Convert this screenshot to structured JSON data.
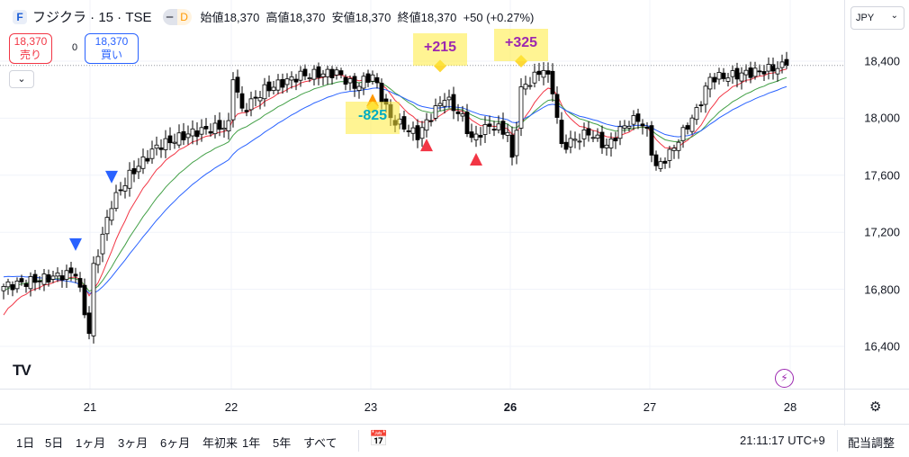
{
  "header": {
    "symbol": "フジクラ · 15 · TSE",
    "logo": "F",
    "interval_badge": "D",
    "open_label": "始値",
    "open": "18,370",
    "high_label": "高値",
    "high": "18,370",
    "low_label": "安値",
    "low": "18,370",
    "close_label": "終値",
    "close": "18,370",
    "change": "+50 (+0.27%)"
  },
  "trade": {
    "sell_price": "18,370",
    "sell_label": "売り",
    "spread": "0",
    "buy_price": "18,370",
    "buy_label": "買い"
  },
  "currency": "JPY",
  "colors": {
    "up": "#ffffff",
    "down": "#000000",
    "ma_fast": "#f23645",
    "ma_mid": "#43a047",
    "ma_slow": "#2962ff",
    "buy_marker": "#2962ff",
    "sell_marker": "#f23645"
  },
  "chart_data": {
    "type": "candlestick",
    "price_ticks": [
      "18,400",
      "18,000",
      "17,600",
      "17,200",
      "16,800",
      "16,400"
    ],
    "price_tick_values": [
      18400,
      18000,
      17600,
      17200,
      16800,
      16400
    ],
    "time_ticks": [
      {
        "label": "21",
        "bold": false
      },
      {
        "label": "22",
        "bold": false
      },
      {
        "label": "23",
        "bold": false
      },
      {
        "label": "26",
        "bold": true
      },
      {
        "label": "27",
        "bold": false
      },
      {
        "label": "28",
        "bold": false
      }
    ],
    "close_keyframes": [
      [
        0,
        16820
      ],
      [
        10,
        16880
      ],
      [
        16,
        16920
      ],
      [
        19,
        16500
      ],
      [
        20,
        16950
      ],
      [
        24,
        17400
      ],
      [
        28,
        17600
      ],
      [
        34,
        17800
      ],
      [
        42,
        17900
      ],
      [
        50,
        17950
      ],
      [
        51,
        18300
      ],
      [
        53,
        18050
      ],
      [
        58,
        18200
      ],
      [
        66,
        18300
      ],
      [
        74,
        18320
      ],
      [
        78,
        18220
      ],
      [
        82,
        18300
      ],
      [
        86,
        18000
      ],
      [
        92,
        17880
      ],
      [
        98,
        18150
      ],
      [
        102,
        18000
      ],
      [
        104,
        17850
      ],
      [
        108,
        17950
      ],
      [
        112,
        17900
      ],
      [
        113,
        17700
      ],
      [
        115,
        18200
      ],
      [
        120,
        18350
      ],
      [
        122,
        18200
      ],
      [
        124,
        17800
      ],
      [
        130,
        17900
      ],
      [
        134,
        17800
      ],
      [
        138,
        17950
      ],
      [
        141,
        18000
      ],
      [
        143,
        17900
      ],
      [
        145,
        17650
      ],
      [
        148,
        17750
      ],
      [
        151,
        17900
      ],
      [
        154,
        18050
      ],
      [
        157,
        18280
      ],
      [
        162,
        18300
      ],
      [
        168,
        18330
      ],
      [
        174,
        18370
      ]
    ],
    "last_price": 18370,
    "signals": [
      {
        "type": "buy",
        "bar": 16
      },
      {
        "type": "buy",
        "bar": 24
      },
      {
        "type": "sell",
        "bar": 82,
        "color": "#ff9800"
      },
      {
        "type": "sell",
        "bar": 94
      },
      {
        "type": "sell",
        "bar": 105
      }
    ],
    "trade_labels": [
      {
        "text": "-825",
        "bar": 82,
        "price": 18000,
        "color": "#00acc1"
      },
      {
        "text": "+215",
        "bar": 97,
        "price": 18480,
        "color": "#9c27b0"
      },
      {
        "text": "+325",
        "bar": 115,
        "price": 18620,
        "color": "#9c27b0"
      }
    ]
  },
  "watermark": "17",
  "toolbar": {
    "ranges": [
      "1日",
      "5日",
      "1ヶ月",
      "3ヶ月",
      "6ヶ月",
      "年初来",
      "1年",
      "5年",
      "すべて"
    ],
    "time": "21:11:17 UTC+9",
    "adjust": "配当調整"
  }
}
